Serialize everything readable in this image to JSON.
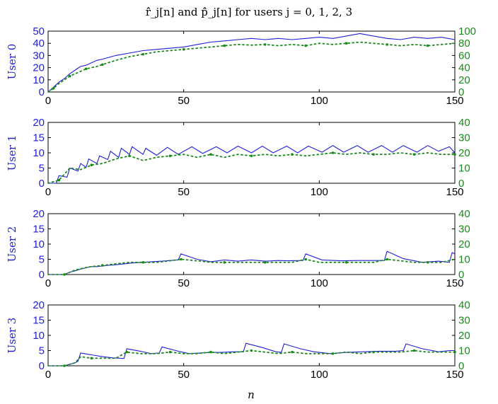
{
  "title": "r̂̂_j[n] and p̂̂_j[n] for users j = 0, 1, 2, 3",
  "xlabel": "n",
  "colors": {
    "left": "#1f1fd6",
    "right": "#1a8a1a"
  },
  "chart_data": [
    {
      "type": "line",
      "ylabel": "User 0",
      "xlim": [
        0,
        150
      ],
      "ylim_left": [
        0,
        50
      ],
      "ylim_right": [
        0,
        100
      ],
      "x_ticks": [
        0,
        50,
        100,
        150
      ],
      "y_ticks_left": [
        0,
        10,
        20,
        30,
        40,
        50
      ],
      "y_ticks_right": [
        0,
        20,
        40,
        60,
        80,
        100
      ],
      "series": [
        {
          "axis": "left",
          "style": "solid",
          "x": [
            0,
            2,
            4,
            6,
            8,
            10,
            12,
            14,
            16,
            18,
            20,
            25,
            30,
            35,
            40,
            45,
            50,
            55,
            60,
            65,
            70,
            75,
            80,
            85,
            90,
            95,
            100,
            105,
            110,
            115,
            120,
            125,
            130,
            135,
            140,
            145,
            150
          ],
          "values": [
            0,
            4,
            8,
            11,
            15,
            18,
            21,
            22,
            24,
            26,
            27,
            30,
            32,
            34,
            35,
            36,
            37,
            39,
            41,
            42,
            43,
            44,
            43,
            44,
            43,
            44,
            45,
            44,
            46,
            48,
            46,
            44,
            43,
            45,
            44,
            45,
            43
          ]
        },
        {
          "axis": "right",
          "style": "dotted",
          "x": [
            0,
            2,
            4,
            6,
            8,
            10,
            12,
            14,
            16,
            18,
            20,
            25,
            30,
            35,
            40,
            45,
            50,
            55,
            60,
            65,
            70,
            75,
            80,
            85,
            90,
            95,
            100,
            105,
            110,
            115,
            120,
            125,
            130,
            135,
            140,
            145,
            150
          ],
          "values": [
            0,
            6,
            14,
            20,
            26,
            30,
            34,
            38,
            40,
            42,
            45,
            52,
            58,
            62,
            66,
            68,
            70,
            72,
            74,
            76,
            78,
            77,
            78,
            76,
            78,
            76,
            80,
            78,
            80,
            82,
            80,
            78,
            76,
            78,
            76,
            78,
            80
          ]
        }
      ]
    },
    {
      "type": "line",
      "ylabel": "User 1",
      "xlim": [
        0,
        150
      ],
      "ylim_left": [
        0,
        20
      ],
      "ylim_right": [
        0,
        40
      ],
      "x_ticks": [
        0,
        50,
        100,
        150
      ],
      "y_ticks_left": [
        0,
        5,
        10,
        15,
        20
      ],
      "y_ticks_right": [
        0,
        10,
        20,
        30,
        40
      ],
      "series": [
        {
          "axis": "left",
          "style": "solid",
          "x": [
            0,
            3,
            4,
            7,
            8,
            11,
            12,
            14,
            15,
            18,
            19,
            22,
            23,
            26,
            27,
            30,
            31,
            35,
            36,
            40,
            44,
            48,
            53,
            57,
            62,
            66,
            70,
            75,
            79,
            83,
            88,
            92,
            96,
            101,
            105,
            109,
            114,
            118,
            123,
            127,
            131,
            136,
            140,
            144,
            148,
            150
          ],
          "values": [
            0,
            0,
            2.5,
            2,
            5,
            4,
            6.5,
            5.2,
            8,
            6.5,
            9,
            7.8,
            10.5,
            8.5,
            11.5,
            9.5,
            12,
            9.5,
            11.5,
            9.2,
            11.8,
            9.5,
            12,
            9.8,
            12,
            10,
            12.2,
            10,
            12.2,
            10,
            12.2,
            10,
            12.2,
            10.2,
            12.4,
            10.2,
            12.4,
            10.2,
            12.4,
            10.2,
            12.4,
            10.2,
            12.4,
            10.5,
            12,
            10
          ]
        },
        {
          "axis": "right",
          "style": "dotted",
          "x": [
            0,
            4,
            8,
            12,
            16,
            20,
            25,
            30,
            35,
            40,
            45,
            50,
            55,
            60,
            65,
            70,
            75,
            80,
            85,
            90,
            95,
            100,
            105,
            110,
            115,
            120,
            125,
            130,
            135,
            140,
            145,
            150
          ],
          "values": [
            0,
            2,
            10,
            9,
            12,
            13,
            16,
            18,
            15,
            17,
            18,
            19,
            17,
            19,
            17,
            19,
            18,
            19,
            18,
            19,
            18,
            19,
            20,
            19,
            20,
            19,
            19,
            20,
            19,
            20,
            19,
            19
          ]
        }
      ]
    },
    {
      "type": "line",
      "ylabel": "User 2",
      "xlim": [
        0,
        150
      ],
      "ylim_left": [
        0,
        20
      ],
      "ylim_right": [
        0,
        40
      ],
      "x_ticks": [
        0,
        50,
        100,
        150
      ],
      "y_ticks_left": [
        0,
        5,
        10,
        15,
        20
      ],
      "y_ticks_right": [
        0,
        10,
        20,
        30,
        40
      ],
      "series": [
        {
          "axis": "left",
          "style": "solid",
          "x": [
            0,
            6,
            8,
            10,
            12,
            14,
            16,
            18,
            20,
            22,
            25,
            28,
            31,
            35,
            38,
            42,
            45,
            48,
            49,
            55,
            60,
            65,
            70,
            75,
            80,
            85,
            88,
            94,
            95,
            101,
            108,
            115,
            120,
            124,
            125,
            131,
            138,
            144,
            148,
            149,
            150
          ],
          "values": [
            0,
            0,
            0.8,
            1.2,
            1.8,
            2.2,
            2.6,
            2.6,
            2.8,
            3.0,
            3.2,
            3.5,
            3.8,
            4.0,
            4.2,
            4.4,
            4.6,
            4.8,
            6.8,
            5.0,
            4.2,
            4.8,
            4.4,
            4.8,
            4.4,
            4.6,
            4.5,
            4.6,
            6.8,
            4.8,
            4.5,
            4.6,
            4.6,
            4.6,
            7.6,
            5.2,
            4.0,
            4.4,
            4.0,
            7.2,
            6.8
          ]
        },
        {
          "axis": "right",
          "style": "dotted",
          "x": [
            0,
            6,
            10,
            15,
            20,
            25,
            30,
            35,
            40,
            45,
            49,
            55,
            60,
            65,
            70,
            75,
            80,
            85,
            90,
            95,
            100,
            105,
            110,
            115,
            120,
            125,
            130,
            135,
            140,
            145,
            150
          ],
          "values": [
            0,
            0,
            3,
            5,
            6,
            7,
            8,
            8,
            8,
            9,
            10,
            9,
            8,
            8,
            8,
            8,
            8,
            8,
            8,
            10,
            8,
            8,
            8,
            8,
            8,
            10,
            9,
            8,
            8,
            8,
            10
          ]
        }
      ]
    },
    {
      "type": "line",
      "ylabel": "User 3",
      "xlim": [
        0,
        150
      ],
      "ylim_left": [
        0,
        20
      ],
      "ylim_right": [
        0,
        40
      ],
      "x_ticks": [
        0,
        50,
        100,
        150
      ],
      "y_ticks_left": [
        0,
        5,
        10,
        15,
        20
      ],
      "y_ticks_right": [
        0,
        10,
        20,
        30,
        40
      ],
      "series": [
        {
          "axis": "left",
          "style": "solid",
          "x": [
            0,
            6,
            8,
            10,
            11,
            12,
            16,
            20,
            24,
            28,
            29,
            34,
            38,
            41,
            42,
            48,
            52,
            56,
            60,
            64,
            68,
            72,
            73,
            79,
            84,
            86,
            87,
            93,
            98,
            104,
            110,
            116,
            122,
            128,
            131,
            132,
            138,
            144,
            148,
            150
          ],
          "values": [
            0,
            0,
            0.5,
            1.0,
            1.5,
            4.2,
            3.6,
            3.0,
            2.6,
            2.4,
            5.6,
            4.8,
            4.0,
            4.2,
            6.2,
            4.8,
            4.0,
            4.2,
            4.4,
            4.4,
            4.6,
            4.6,
            7.4,
            6.0,
            4.6,
            4.4,
            7.2,
            5.6,
            4.6,
            4.0,
            4.4,
            4.6,
            4.8,
            4.8,
            5.0,
            7.2,
            5.6,
            4.6,
            5.0,
            5.0
          ]
        },
        {
          "axis": "right",
          "style": "dotted",
          "x": [
            0,
            6,
            10,
            12,
            16,
            20,
            25,
            29,
            34,
            40,
            45,
            50,
            55,
            60,
            65,
            70,
            75,
            80,
            85,
            90,
            95,
            100,
            105,
            110,
            115,
            120,
            125,
            130,
            135,
            140,
            145,
            150
          ],
          "values": [
            0,
            0,
            2,
            6,
            5,
            5,
            5,
            9,
            8,
            8,
            9,
            8,
            8,
            9,
            8,
            9,
            10,
            9,
            8,
            9,
            8,
            8,
            8,
            9,
            8,
            9,
            9,
            9,
            10,
            9,
            9,
            9
          ]
        }
      ]
    }
  ]
}
